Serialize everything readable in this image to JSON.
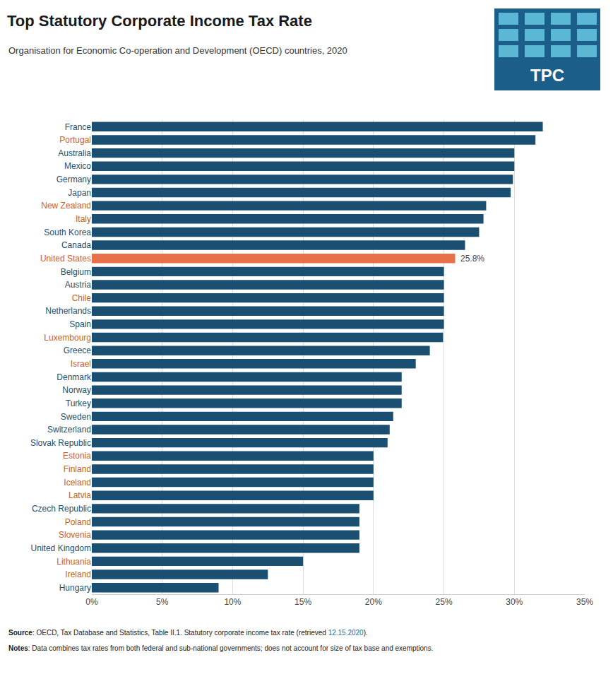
{
  "chart_data": {
    "type": "bar",
    "orientation": "horizontal",
    "title": "Top Statutory Corporate Income Tax Rate",
    "subtitle": "Organisation for Economic Co-operation and Development (OECD) countries, 2020",
    "categories": [
      "France",
      "Portugal",
      "Australia",
      "Mexico",
      "Germany",
      "Japan",
      "New Zealand",
      "Italy",
      "South Korea",
      "Canada",
      "United States",
      "Belgium",
      "Austria",
      "Chile",
      "Netherlands",
      "Spain",
      "Luxembourg",
      "Greece",
      "Israel",
      "Denmark",
      "Norway",
      "Turkey",
      "Sweden",
      "Switzerland",
      "Slovak Republic",
      "Estonia",
      "Finland",
      "Iceland",
      "Latvia",
      "Czech Republic",
      "Poland",
      "Slovenia",
      "United Kingdom",
      "Lithuania",
      "Ireland",
      "Hungary"
    ],
    "values": [
      32.02,
      31.5,
      30.0,
      30.0,
      29.9,
      29.74,
      28.0,
      27.81,
      27.5,
      26.5,
      25.8,
      25.0,
      25.0,
      25.0,
      25.0,
      25.0,
      24.94,
      24.0,
      23.0,
      22.0,
      22.0,
      22.0,
      21.4,
      21.15,
      21.0,
      20.0,
      20.0,
      20.0,
      20.0,
      19.0,
      19.0,
      19.0,
      19.0,
      15.0,
      12.5,
      9.0
    ],
    "colors": [
      "#1b4f72",
      "#1b4f72",
      "#1b4f72",
      "#1b4f72",
      "#1b4f72",
      "#1b4f72",
      "#1b4f72",
      "#1b4f72",
      "#1b4f72",
      "#1b4f72",
      "#e8714a",
      "#1b4f72",
      "#1b4f72",
      "#1b4f72",
      "#1b4f72",
      "#1b4f72",
      "#1b4f72",
      "#1b4f72",
      "#1b4f72",
      "#1b4f72",
      "#1b4f72",
      "#1b4f72",
      "#1b4f72",
      "#1b4f72",
      "#1b4f72",
      "#1b4f72",
      "#1b4f72",
      "#1b4f72",
      "#1b4f72",
      "#1b4f72",
      "#1b4f72",
      "#1b4f72",
      "#1b4f72",
      "#1b4f72",
      "#1b4f72",
      "#1b4f72"
    ],
    "label_colors": [
      "#1b4f72",
      "#c8602a",
      "#1b4f72",
      "#1b4f72",
      "#1b4f72",
      "#1b4f72",
      "#c8602a",
      "#c8602a",
      "#1b4f72",
      "#1b4f72",
      "#c8602a",
      "#1b4f72",
      "#1b4f72",
      "#c8602a",
      "#1b4f72",
      "#1b4f72",
      "#c8602a",
      "#1b4f72",
      "#c8602a",
      "#1b4f72",
      "#1b4f72",
      "#1b4f72",
      "#1b4f72",
      "#1b4f72",
      "#1b4f72",
      "#c8602a",
      "#c8602a",
      "#c8602a",
      "#c8602a",
      "#1b4f72",
      "#c8602a",
      "#c8602a",
      "#1b4f72",
      "#c8602a",
      "#c8602a",
      "#1b4f72"
    ],
    "xlim": [
      0,
      35
    ],
    "xticks": [
      {
        "value": 0,
        "label": "0%"
      },
      {
        "value": 5,
        "label": "5%"
      },
      {
        "value": 10,
        "label": "10%"
      },
      {
        "value": 15,
        "label": "15%"
      },
      {
        "value": 20,
        "label": "20%"
      },
      {
        "value": 25,
        "label": "25%"
      },
      {
        "value": 30,
        "label": "30%"
      },
      {
        "value": 35,
        "label": "35%"
      }
    ],
    "grid": true,
    "annotations": [
      {
        "category": "United States",
        "text": "25.8%"
      }
    ],
    "footnotes": [
      [
        {
          "text": "Source"
        },
        {
          "text": ": OECD, Tax Database and Statistics, Table II.1. Statutory corporate income tax rate (retrieved "
        },
        {
          "text": "12.15.2020",
          "color": "#1a6aaa"
        },
        {
          "text": ")."
        }
      ],
      [
        {
          "text": "Notes"
        },
        {
          "text": ": Data combines tax rates from both federal and sub-national governments; does not account for size of tax base and exemptions."
        }
      ]
    ],
    "logo": {
      "text": "TPC",
      "colors": [
        "#1b5e8a",
        "#5bb8d4"
      ]
    }
  }
}
